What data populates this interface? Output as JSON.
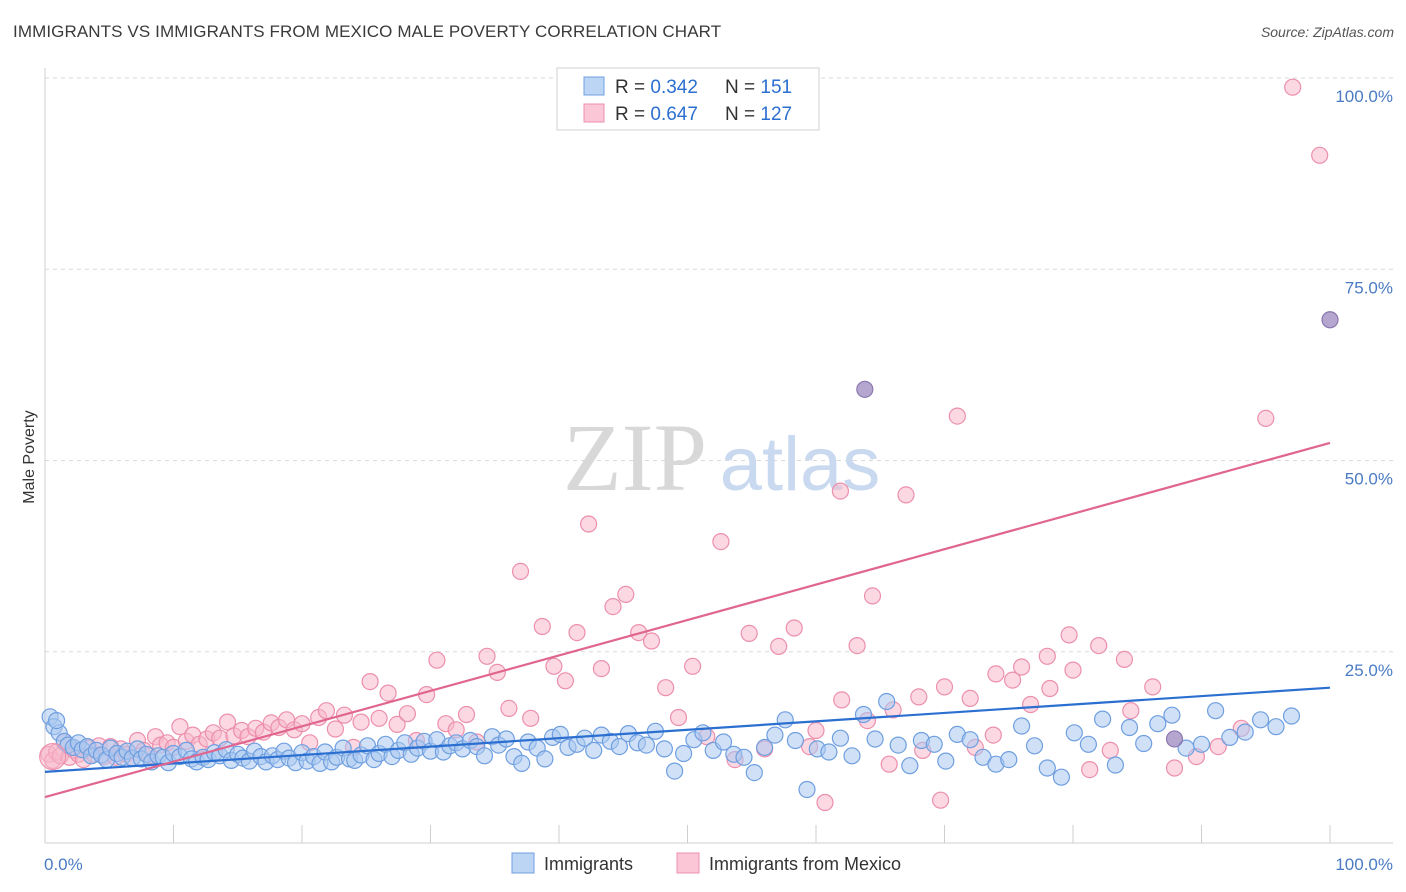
{
  "header": {
    "title": "IMMIGRANTS VS IMMIGRANTS FROM MEXICO MALE POVERTY CORRELATION CHART",
    "source": "Source: ZipAtlas.com"
  },
  "watermark": {
    "zip": "ZIP",
    "atlas": "atlas"
  },
  "colors": {
    "blue_fill": "#a9c8f0",
    "blue_stroke": "#6f9fe0",
    "blue_line": "#2b6fd1",
    "pink_fill": "#f7b8cb",
    "pink_stroke": "#ec8fad",
    "pink_line": "#e0668f",
    "purple_fill": "#9b88be",
    "tick_text": "#4a7bc4",
    "grid": "#d9d9d9"
  },
  "legend": {
    "rows": [
      {
        "r_label": "R = ",
        "r_value": "0.342",
        "n_label": "N = ",
        "n_value": "151"
      },
      {
        "r_label": "R = ",
        "r_value": "0.647",
        "n_label": "N = ",
        "n_value": "127"
      }
    ]
  },
  "chart_data": {
    "type": "scatter",
    "xlabel": "",
    "ylabel": "Male Poverty",
    "xlim": [
      0,
      100
    ],
    "ylim": [
      0,
      100
    ],
    "x_tick_labels": [
      "0.0%",
      "100.0%"
    ],
    "y_tick_labels": [
      "25.0%",
      "50.0%",
      "75.0%",
      "100.0%"
    ],
    "y_ticks": [
      25,
      50,
      75,
      100
    ],
    "grid": true,
    "series": [
      {
        "name": "Immigrants",
        "color": "#a9c8f0",
        "trend": [
          [
            0,
            9.3
          ],
          [
            100,
            20.3
          ]
        ],
        "points": [
          [
            0.4,
            16.5
          ],
          [
            0.7,
            15.2
          ],
          [
            1.1,
            14.4
          ],
          [
            1.5,
            13.3
          ],
          [
            1.8,
            12.8
          ],
          [
            2.2,
            12.5
          ],
          [
            2.6,
            13.1
          ],
          [
            2.9,
            12.2
          ],
          [
            3.3,
            12.6
          ],
          [
            3.6,
            11.4
          ],
          [
            4.0,
            12.1
          ],
          [
            4.4,
            11.5
          ],
          [
            4.8,
            10.9
          ],
          [
            5.1,
            12.4
          ],
          [
            5.6,
            11.7
          ],
          [
            6.0,
            11.2
          ],
          [
            6.4,
            12.0
          ],
          [
            6.8,
            11.1
          ],
          [
            7.2,
            12.3
          ],
          [
            7.5,
            11.0
          ],
          [
            7.9,
            11.6
          ],
          [
            8.3,
            10.6
          ],
          [
            8.8,
            11.4
          ],
          [
            9.2,
            11.2
          ],
          [
            9.6,
            10.5
          ],
          [
            10.0,
            11.7
          ],
          [
            10.5,
            11.3
          ],
          [
            11.0,
            12.1
          ],
          [
            11.4,
            11.0
          ],
          [
            11.8,
            10.6
          ],
          [
            12.3,
            11.2
          ],
          [
            12.7,
            10.9
          ],
          [
            13.2,
            11.8
          ],
          [
            13.6,
            11.4
          ],
          [
            14.1,
            12.2
          ],
          [
            14.5,
            10.8
          ],
          [
            15.0,
            11.6
          ],
          [
            15.4,
            11.1
          ],
          [
            15.9,
            10.7
          ],
          [
            16.3,
            12.0
          ],
          [
            16.8,
            11.3
          ],
          [
            17.2,
            10.6
          ],
          [
            17.7,
            11.4
          ],
          [
            18.1,
            10.9
          ],
          [
            18.6,
            12.0
          ],
          [
            19.0,
            11.1
          ],
          [
            19.5,
            10.5
          ],
          [
            20.0,
            11.8
          ],
          [
            20.4,
            10.7
          ],
          [
            20.9,
            11.3
          ],
          [
            21.4,
            10.4
          ],
          [
            21.8,
            11.9
          ],
          [
            22.3,
            10.6
          ],
          [
            22.7,
            11.2
          ],
          [
            23.2,
            12.4
          ],
          [
            23.7,
            11.0
          ],
          [
            24.1,
            10.8
          ],
          [
            24.6,
            11.5
          ],
          [
            25.1,
            12.7
          ],
          [
            25.6,
            10.9
          ],
          [
            26.0,
            11.7
          ],
          [
            26.5,
            12.9
          ],
          [
            27.0,
            11.3
          ],
          [
            27.5,
            12.1
          ],
          [
            28.0,
            13.1
          ],
          [
            28.5,
            11.6
          ],
          [
            29.0,
            12.4
          ],
          [
            29.5,
            13.3
          ],
          [
            30.0,
            12.0
          ],
          [
            30.5,
            13.5
          ],
          [
            31.0,
            11.9
          ],
          [
            31.5,
            12.7
          ],
          [
            32.0,
            13.1
          ],
          [
            32.5,
            12.3
          ],
          [
            33.1,
            13.4
          ],
          [
            33.6,
            12.6
          ],
          [
            34.2,
            11.4
          ],
          [
            34.8,
            13.9
          ],
          [
            35.3,
            12.8
          ],
          [
            35.9,
            13.6
          ],
          [
            36.5,
            11.3
          ],
          [
            37.1,
            10.4
          ],
          [
            37.6,
            13.2
          ],
          [
            38.3,
            12.4
          ],
          [
            38.9,
            11.0
          ],
          [
            39.5,
            13.8
          ],
          [
            40.1,
            14.2
          ],
          [
            40.7,
            12.5
          ],
          [
            41.4,
            12.9
          ],
          [
            42.0,
            13.7
          ],
          [
            42.7,
            12.1
          ],
          [
            43.3,
            14.1
          ],
          [
            44.0,
            13.3
          ],
          [
            44.7,
            12.6
          ],
          [
            45.4,
            14.3
          ],
          [
            46.1,
            13.1
          ],
          [
            46.8,
            12.8
          ],
          [
            47.5,
            14.6
          ],
          [
            48.2,
            12.3
          ],
          [
            49.0,
            9.4
          ],
          [
            49.7,
            11.7
          ],
          [
            50.5,
            13.5
          ],
          [
            51.2,
            14.4
          ],
          [
            52.0,
            12.1
          ],
          [
            52.8,
            13.2
          ],
          [
            53.6,
            11.6
          ],
          [
            54.4,
            11.2
          ],
          [
            55.2,
            9.2
          ],
          [
            56.0,
            12.5
          ],
          [
            56.8,
            14.1
          ],
          [
            57.6,
            16.1
          ],
          [
            58.4,
            13.4
          ],
          [
            59.3,
            7.0
          ],
          [
            60.1,
            12.3
          ],
          [
            61.0,
            11.9
          ],
          [
            61.9,
            13.7
          ],
          [
            62.8,
            11.4
          ],
          [
            63.7,
            16.8
          ],
          [
            64.6,
            13.6
          ],
          [
            65.5,
            18.5
          ],
          [
            66.4,
            12.8
          ],
          [
            67.3,
            10.1
          ],
          [
            68.2,
            13.4
          ],
          [
            69.2,
            12.9
          ],
          [
            70.1,
            10.7
          ],
          [
            71.0,
            14.2
          ],
          [
            72.0,
            13.5
          ],
          [
            73.0,
            11.2
          ],
          [
            74.0,
            10.3
          ],
          [
            75.0,
            10.9
          ],
          [
            76.0,
            15.3
          ],
          [
            77.0,
            12.7
          ],
          [
            78.0,
            9.8
          ],
          [
            79.1,
            8.6
          ],
          [
            80.1,
            14.4
          ],
          [
            81.2,
            12.9
          ],
          [
            82.3,
            16.2
          ],
          [
            83.3,
            10.2
          ],
          [
            84.4,
            15.1
          ],
          [
            85.5,
            13.0
          ],
          [
            86.6,
            15.6
          ],
          [
            87.7,
            16.7
          ],
          [
            88.8,
            12.4
          ],
          [
            90.0,
            12.9
          ],
          [
            91.1,
            17.3
          ],
          [
            92.2,
            13.8
          ],
          [
            93.4,
            14.5
          ],
          [
            94.6,
            16.1
          ],
          [
            95.8,
            15.2
          ],
          [
            97.0,
            16.6
          ],
          [
            0.9,
            16.0
          ]
        ]
      },
      {
        "name": "Immigrants from Mexico",
        "color": "#f7b8cb",
        "trend": [
          [
            0,
            6.0
          ],
          [
            100,
            52.3
          ]
        ],
        "points": [
          [
            0.3,
            11.6
          ],
          [
            0.6,
            10.8
          ],
          [
            0.9,
            11.9
          ],
          [
            1.2,
            11.4
          ],
          [
            1.5,
            13.2
          ],
          [
            1.9,
            11.2
          ],
          [
            2.3,
            12.1
          ],
          [
            2.6,
            11.6
          ],
          [
            3.0,
            10.9
          ],
          [
            3.4,
            12.4
          ],
          [
            3.8,
            11.6
          ],
          [
            4.2,
            12.7
          ],
          [
            4.6,
            11.3
          ],
          [
            5.1,
            12.6
          ],
          [
            5.5,
            11.2
          ],
          [
            5.9,
            12.3
          ],
          [
            6.3,
            11.6
          ],
          [
            6.8,
            11.1
          ],
          [
            7.2,
            13.4
          ],
          [
            7.7,
            12.1
          ],
          [
            8.1,
            11.4
          ],
          [
            8.6,
            13.9
          ],
          [
            9.0,
            12.8
          ],
          [
            9.5,
            13.1
          ],
          [
            10.0,
            12.5
          ],
          [
            10.5,
            15.2
          ],
          [
            11.0,
            13.3
          ],
          [
            11.5,
            14.1
          ],
          [
            12.0,
            12.9
          ],
          [
            12.6,
            13.6
          ],
          [
            13.1,
            14.4
          ],
          [
            13.6,
            13.7
          ],
          [
            14.2,
            15.8
          ],
          [
            14.7,
            14.0
          ],
          [
            15.3,
            14.7
          ],
          [
            15.8,
            13.9
          ],
          [
            16.4,
            15.0
          ],
          [
            17.0,
            14.5
          ],
          [
            17.6,
            15.7
          ],
          [
            18.2,
            15.1
          ],
          [
            18.8,
            16.1
          ],
          [
            19.4,
            14.8
          ],
          [
            20.0,
            15.6
          ],
          [
            20.6,
            13.1
          ],
          [
            21.3,
            16.4
          ],
          [
            21.9,
            17.3
          ],
          [
            22.6,
            14.9
          ],
          [
            23.3,
            16.7
          ],
          [
            24.0,
            12.5
          ],
          [
            24.6,
            15.8
          ],
          [
            25.3,
            21.1
          ],
          [
            26.0,
            16.3
          ],
          [
            26.7,
            19.6
          ],
          [
            27.4,
            15.5
          ],
          [
            28.2,
            16.9
          ],
          [
            28.9,
            13.4
          ],
          [
            29.7,
            19.4
          ],
          [
            30.5,
            23.9
          ],
          [
            31.2,
            15.6
          ],
          [
            32.0,
            14.8
          ],
          [
            32.8,
            16.8
          ],
          [
            33.6,
            13.2
          ],
          [
            34.4,
            24.4
          ],
          [
            35.2,
            22.3
          ],
          [
            36.1,
            17.6
          ],
          [
            37.0,
            35.5
          ],
          [
            37.8,
            16.3
          ],
          [
            38.7,
            28.3
          ],
          [
            39.6,
            23.1
          ],
          [
            40.5,
            21.2
          ],
          [
            41.4,
            27.5
          ],
          [
            42.3,
            41.7
          ],
          [
            43.3,
            22.8
          ],
          [
            44.2,
            30.9
          ],
          [
            45.2,
            32.5
          ],
          [
            46.2,
            27.5
          ],
          [
            47.2,
            26.4
          ],
          [
            48.3,
            20.3
          ],
          [
            49.3,
            16.4
          ],
          [
            50.4,
            23.1
          ],
          [
            51.5,
            13.9
          ],
          [
            52.6,
            39.4
          ],
          [
            53.7,
            10.9
          ],
          [
            54.8,
            27.4
          ],
          [
            56.0,
            12.3
          ],
          [
            57.1,
            25.7
          ],
          [
            58.3,
            28.1
          ],
          [
            59.5,
            12.6
          ],
          [
            60.7,
            5.3
          ],
          [
            61.9,
            46.0
          ],
          [
            63.2,
            25.8
          ],
          [
            64.4,
            32.3
          ],
          [
            65.7,
            10.3
          ],
          [
            67.0,
            45.5
          ],
          [
            68.3,
            12.1
          ],
          [
            69.7,
            5.6
          ],
          [
            71.0,
            55.8
          ],
          [
            72.4,
            12.5
          ],
          [
            73.8,
            14.1
          ],
          [
            75.3,
            21.3
          ],
          [
            76.7,
            18.1
          ],
          [
            78.2,
            20.2
          ],
          [
            79.7,
            27.2
          ],
          [
            81.3,
            9.6
          ],
          [
            82.9,
            12.1
          ],
          [
            84.5,
            17.3
          ],
          [
            86.2,
            20.4
          ],
          [
            87.9,
            9.8
          ],
          [
            89.6,
            11.3
          ],
          [
            91.3,
            12.6
          ],
          [
            93.1,
            15.0
          ],
          [
            95.0,
            55.5
          ],
          [
            97.1,
            98.8
          ],
          [
            99.2,
            89.9
          ],
          [
            60.0,
            14.7
          ],
          [
            62.0,
            18.7
          ],
          [
            64.0,
            16.0
          ],
          [
            66.0,
            17.4
          ],
          [
            68.0,
            19.1
          ],
          [
            70.0,
            20.4
          ],
          [
            72.0,
            18.9
          ],
          [
            74.0,
            22.1
          ],
          [
            76.0,
            23.0
          ],
          [
            78.0,
            24.4
          ],
          [
            80.0,
            22.6
          ],
          [
            82.0,
            25.8
          ],
          [
            84.0,
            24.0
          ]
        ]
      }
    ],
    "overlap_points": [
      [
        63.8,
        59.3
      ],
      [
        87.9,
        13.6
      ],
      [
        100.0,
        68.4
      ]
    ]
  }
}
